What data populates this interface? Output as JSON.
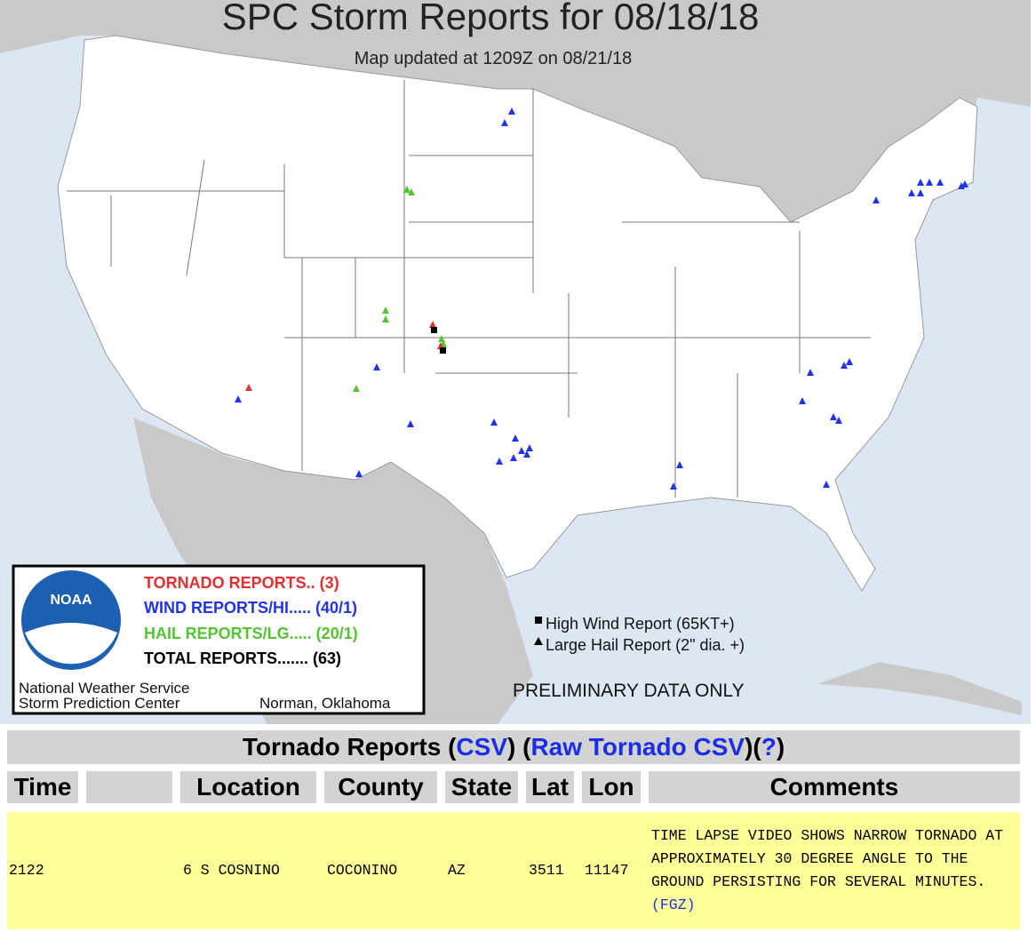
{
  "map": {
    "title": "SPC Storm Reports for 08/18/18",
    "subtitle": "Map updated at 1209Z on 08/21/18",
    "legend": {
      "logo": "NOAA",
      "entries": [
        {
          "text": "TORNADO REPORTS.. (3)",
          "color": "#e03030"
        },
        {
          "text": "WIND REPORTS/HI..... (40/1)",
          "color": "#2233ee"
        },
        {
          "text": "HAIL REPORTS/LG..... (20/1)",
          "color": "#55c433"
        },
        {
          "text": "TOTAL REPORTS....... (63)",
          "color": "#000000"
        }
      ],
      "agency": [
        "National Weather Service",
        "Storm Prediction Center"
      ],
      "location": "Norman, Oklahoma"
    },
    "key": [
      "High Wind Report (65KT+)",
      "Large Hail Report (2\" dia. +)"
    ],
    "notice": "PRELIMINARY DATA ONLY"
  },
  "table": {
    "heading": [
      {
        "text": "Tornado Reports (",
        "link": false
      },
      {
        "text": "CSV",
        "link": true
      },
      {
        "text": ") (",
        "link": false
      },
      {
        "text": "Raw Tornado CSV",
        "link": true
      },
      {
        "text": ")(",
        "link": false
      },
      {
        "text": "?",
        "link": true
      },
      {
        "text": ")",
        "link": false
      }
    ],
    "headers": [
      "Time",
      "Location",
      "County",
      "State",
      "Lat",
      "Lon",
      "Comments"
    ],
    "rows": [
      {
        "time": "2122",
        "location": "6 S COSNINO",
        "county": "COCONINO",
        "state": "AZ",
        "lat": "3511",
        "lon": "11147",
        "comments": "TIME LAPSE VIDEO SHOWS NARROW TORNADO AT APPROXIMATELY 30 DEGREE ANGLE TO THE GROUND PERSISTING FOR SEVERAL MINUTES.",
        "office": "(FGZ)"
      }
    ]
  }
}
